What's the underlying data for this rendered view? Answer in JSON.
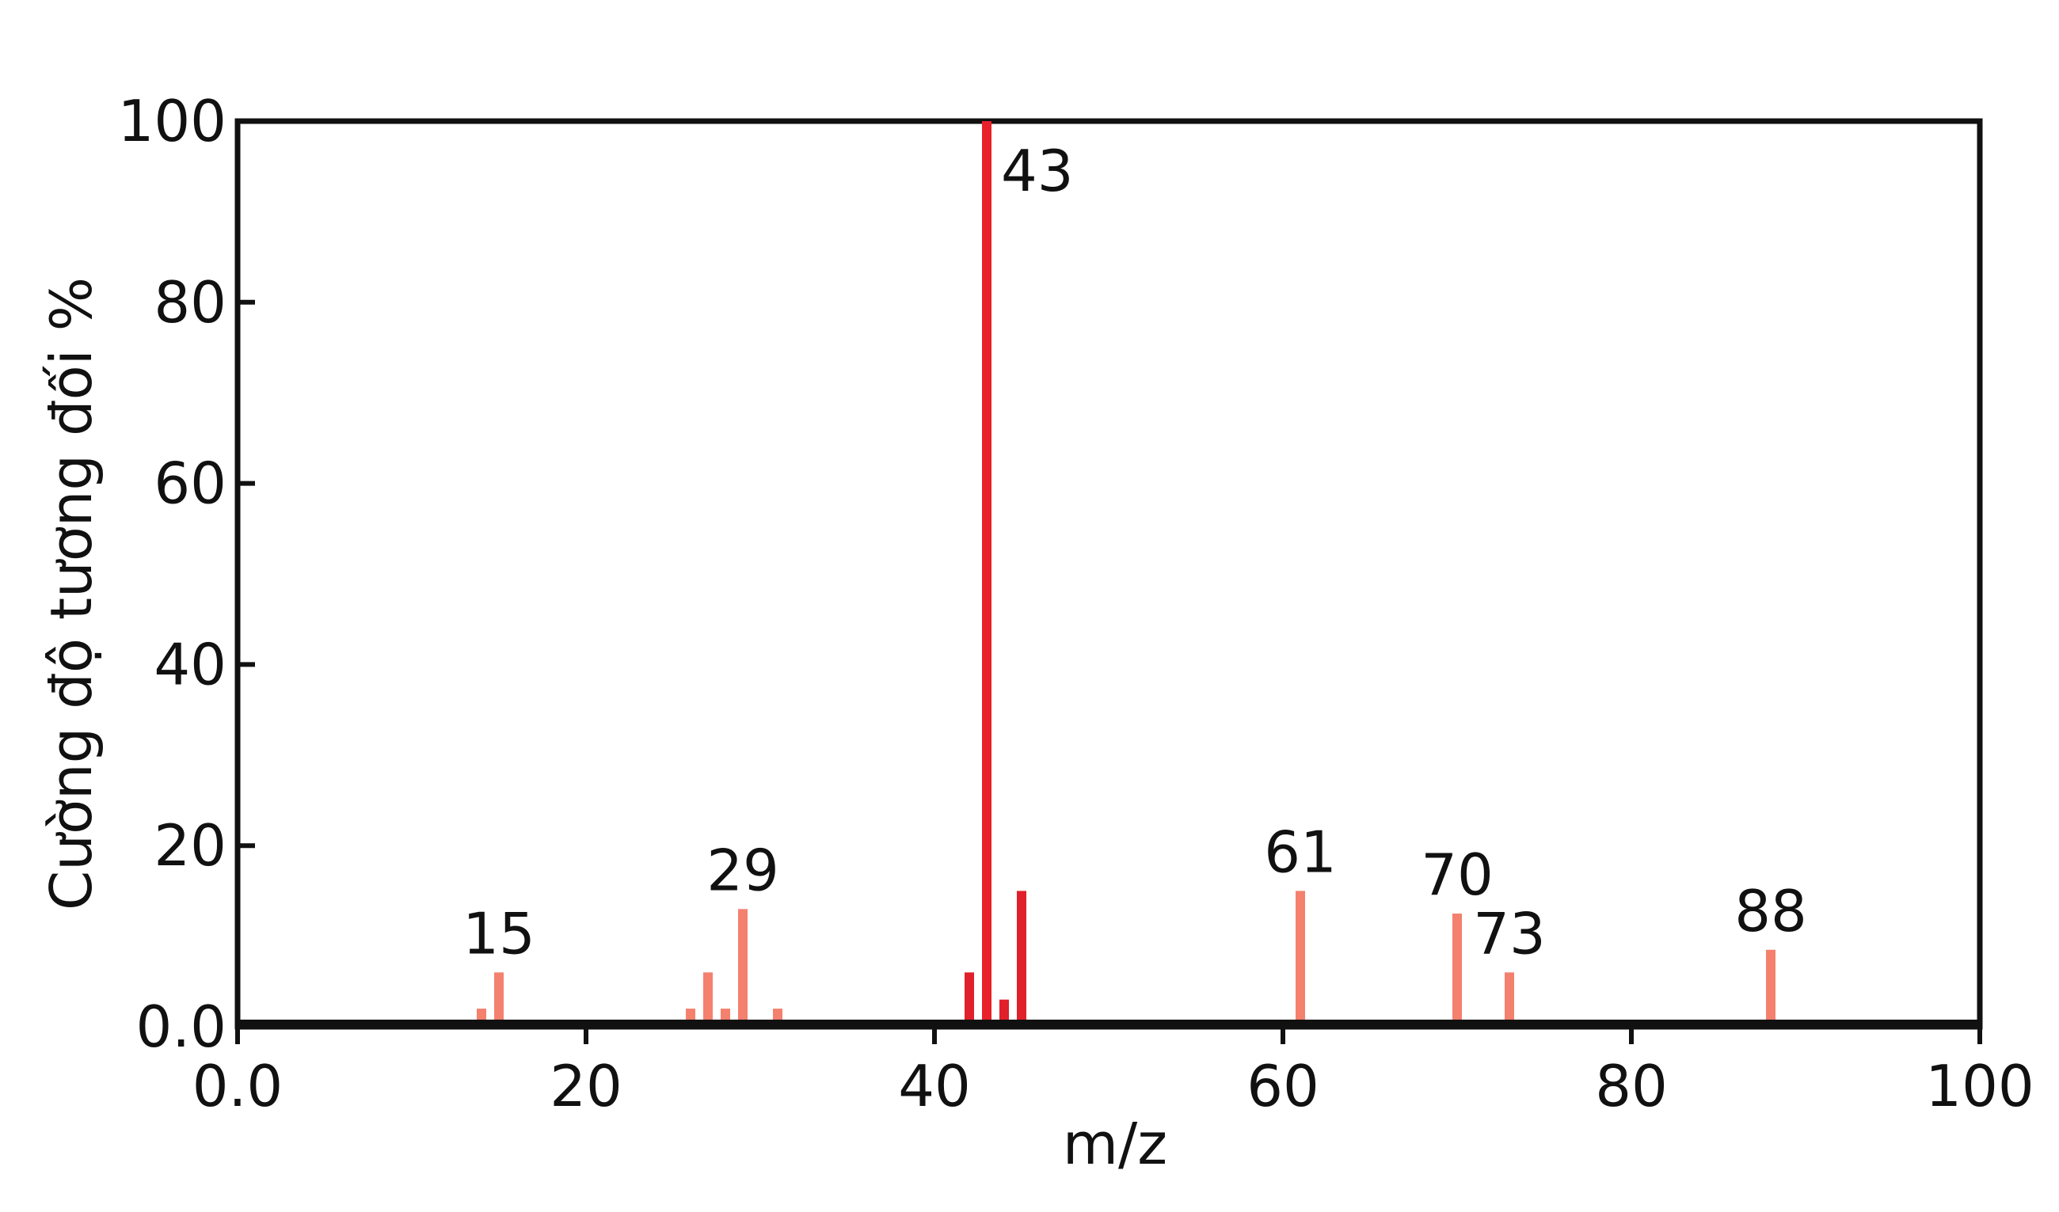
{
  "chart_data": {
    "type": "bar",
    "x_label": "m/z",
    "y_label": "Cường độ tương đối %",
    "x": [
      14,
      15,
      26,
      27,
      28,
      29,
      31,
      42,
      43,
      44,
      45,
      61,
      70,
      73,
      88
    ],
    "values": [
      2,
      6,
      2,
      6,
      2,
      13,
      2,
      6,
      100,
      3,
      15,
      15,
      12.5,
      6,
      8.5
    ],
    "colors": [
      "#f4806e",
      "#f4806e",
      "#f4806e",
      "#f4806e",
      "#f4806e",
      "#f4806e",
      "#f4806e",
      "#e0202a",
      "#e8202a",
      "#e0202a",
      "#e0202a",
      "#f4806e",
      "#f4806e",
      "#f4806e",
      "#f4806e"
    ],
    "annotations": [
      15,
      29,
      43,
      61,
      70,
      73,
      88
    ],
    "xlim": [
      0,
      100
    ],
    "ylim": [
      0,
      100
    ],
    "xticks": [
      {
        "value": 0,
        "label": "0.0"
      },
      20,
      40,
      60,
      80,
      100
    ],
    "yticks": [
      {
        "value": 0,
        "label": "0.0"
      },
      20,
      40,
      60,
      80,
      100
    ],
    "grid": false
  }
}
